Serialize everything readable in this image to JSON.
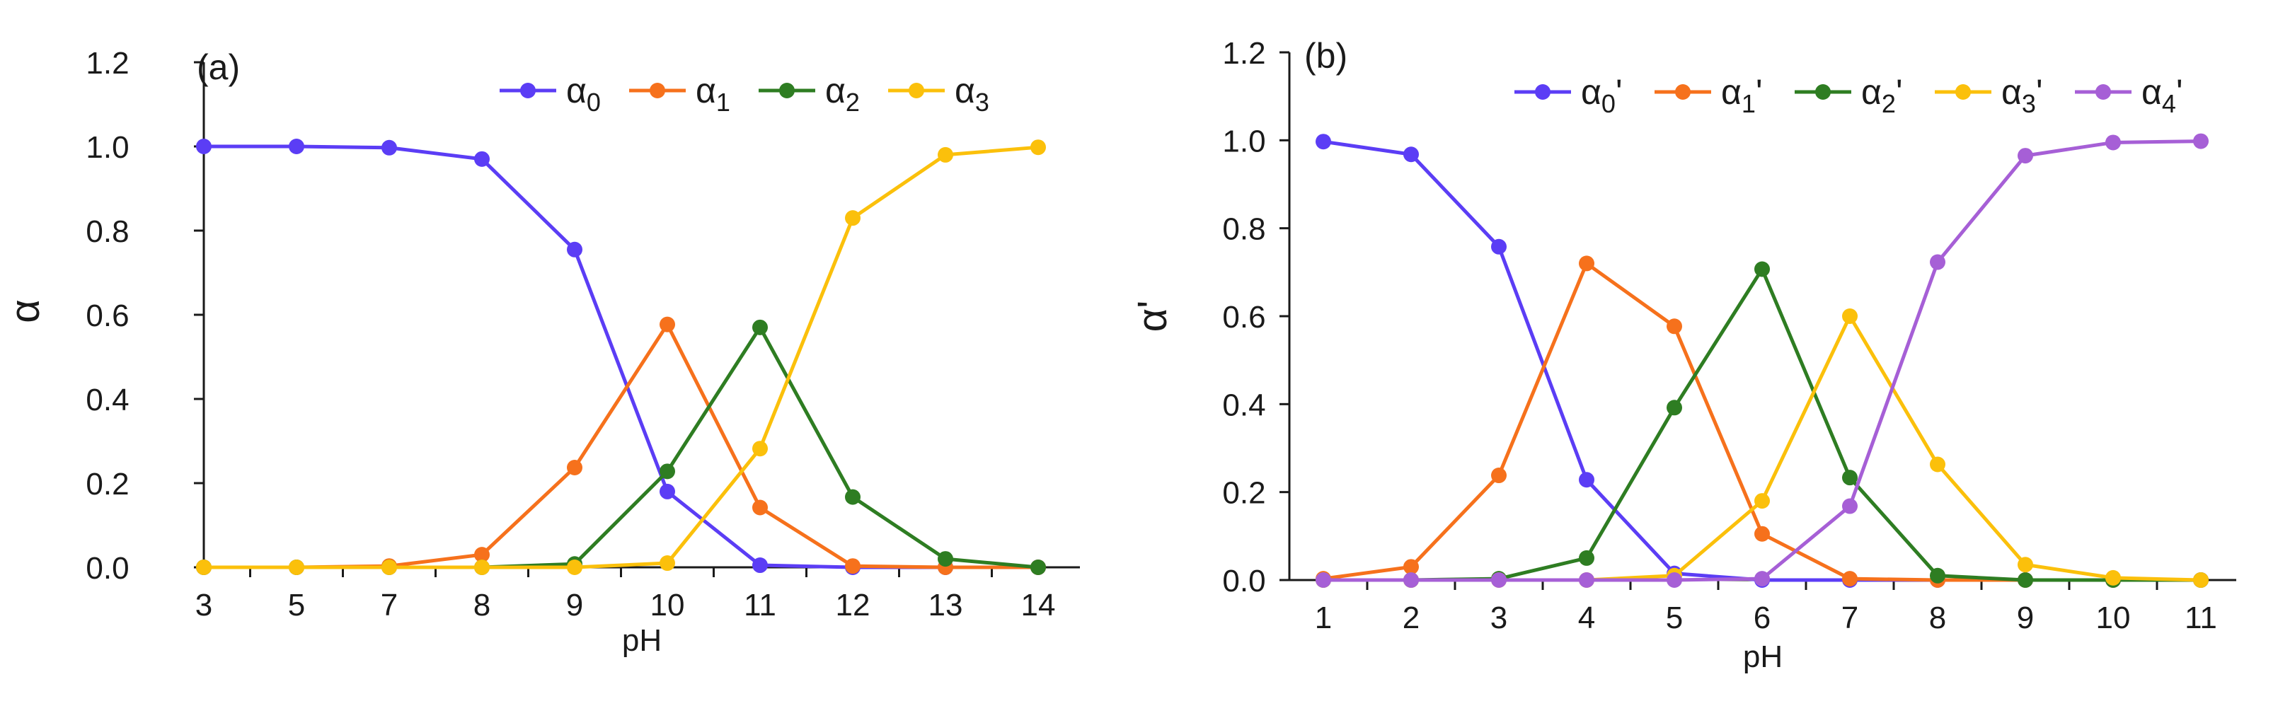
{
  "chart_data": [
    {
      "type": "line",
      "panel_label": "(a)",
      "title": "",
      "xlabel": "pH",
      "ylabel": "α",
      "ylim": [
        0,
        1.2
      ],
      "yticks": [
        "0.0",
        "0.2",
        "0.4",
        "0.6",
        "0.8",
        "1.0",
        "1.2"
      ],
      "categories": [
        "3",
        "5",
        "7",
        "8",
        "9",
        "10",
        "11",
        "12",
        "13",
        "14"
      ],
      "legend_position": "top-right",
      "grid": false,
      "series": [
        {
          "name": "α",
          "sub": "0",
          "prime": "",
          "color": "#5b3df5",
          "values": [
            1.0,
            1.0,
            0.997,
            0.97,
            0.755,
            0.18,
            0.005,
            0.0,
            0.0,
            0.0
          ]
        },
        {
          "name": "α",
          "sub": "1",
          "prime": "",
          "color": "#f6711c",
          "values": [
            0.0,
            0.0,
            0.003,
            0.03,
            0.237,
            0.577,
            0.142,
            0.003,
            0.0,
            0.0
          ]
        },
        {
          "name": "α",
          "sub": "2",
          "prime": "",
          "color": "#2e7d22",
          "values": [
            0.0,
            0.0,
            0.0,
            0.0,
            0.008,
            0.228,
            0.57,
            0.167,
            0.02,
            0.0
          ]
        },
        {
          "name": "α",
          "sub": "3",
          "prime": "",
          "color": "#fbc00b",
          "values": [
            0.0,
            0.0,
            0.0,
            0.0,
            0.0,
            0.01,
            0.282,
            0.83,
            0.98,
            0.998
          ]
        }
      ]
    },
    {
      "type": "line",
      "panel_label": "(b)",
      "title": "",
      "xlabel": "pH",
      "ylabel": "α'",
      "ylim": [
        0,
        1.2
      ],
      "yticks": [
        "0.0",
        "0.2",
        "0.4",
        "0.6",
        "0.8",
        "1.0",
        "1.2"
      ],
      "categories": [
        "1",
        "2",
        "3",
        "4",
        "5",
        "6",
        "7",
        "8",
        "9",
        "10",
        "11"
      ],
      "legend_position": "top-right",
      "grid": false,
      "series": [
        {
          "name": "α",
          "sub": "0",
          "prime": "'",
          "color": "#5b3df5",
          "values": [
            0.997,
            0.968,
            0.758,
            0.228,
            0.015,
            0.0,
            0.0,
            0.0,
            0.0,
            0.0,
            0.0
          ]
        },
        {
          "name": "α",
          "sub": "1",
          "prime": "'",
          "color": "#f6711c",
          "values": [
            0.003,
            0.03,
            0.238,
            0.72,
            0.577,
            0.105,
            0.003,
            0.0,
            0.0,
            0.0,
            0.0
          ]
        },
        {
          "name": "α",
          "sub": "2",
          "prime": "'",
          "color": "#2e7d22",
          "values": [
            0.0,
            0.0,
            0.003,
            0.05,
            0.392,
            0.707,
            0.233,
            0.01,
            0.0,
            0.0,
            0.0
          ]
        },
        {
          "name": "α",
          "sub": "3",
          "prime": "'",
          "color": "#fbc00b",
          "values": [
            0.0,
            0.0,
            0.0,
            0.0,
            0.01,
            0.18,
            0.6,
            0.263,
            0.035,
            0.005,
            0.0
          ]
        },
        {
          "name": "α",
          "sub": "4",
          "prime": "'",
          "color": "#a65fd6",
          "values": [
            0.0,
            0.0,
            0.0,
            0.0,
            0.0,
            0.003,
            0.168,
            0.723,
            0.965,
            0.995,
            0.998
          ]
        }
      ]
    }
  ]
}
